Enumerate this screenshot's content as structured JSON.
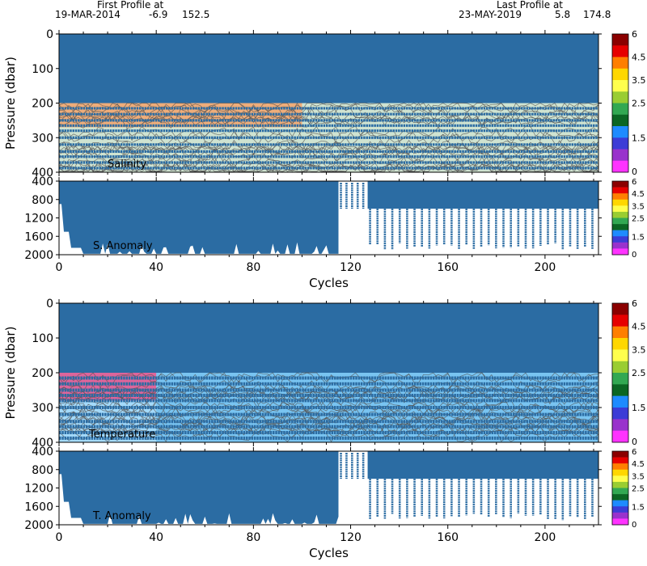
{
  "header": {
    "first_label": "First Profile at",
    "first_date": "19-MAR-2014",
    "first_lat": "-6.9",
    "first_lon": "152.5",
    "last_label": "Last Profile at",
    "last_date": "23-MAY-2019",
    "last_lat": "5.8",
    "last_lon": "174.8"
  },
  "colors": {
    "profile_blue": "#2b6ca3",
    "salinity_band": "#cfe3d1",
    "salinity_warm": "#f3a36b",
    "temperature_band": "#55b2ea",
    "temperature_light": "#a4dafa",
    "temperature_pink": "#e8508a",
    "contour": "#555555"
  },
  "colorbar": {
    "ticks": [
      "6",
      "4.5",
      "3.5",
      "2.5",
      "1.5",
      "0"
    ],
    "colors": [
      "#8b0000",
      "#e60000",
      "#ff7f00",
      "#ffd700",
      "#ffff4d",
      "#9acd32",
      "#32a852",
      "#0b6623",
      "#1e8bff",
      "#3c3cd6",
      "#9932cc",
      "#ff33ff"
    ]
  },
  "chart_data": [
    {
      "type": "heatmap",
      "name": "salinity",
      "panel_label": "Salinity",
      "ylabel": "Pressure (dbar)",
      "xlim": [
        0,
        222
      ],
      "ylim": [
        400,
        0
      ],
      "x_ticks": [
        "0",
        "40",
        "80",
        "120",
        "160",
        "200"
      ],
      "y_ticks": [
        "0",
        "100",
        "200",
        "300",
        "400"
      ],
      "pressure_bands": [
        215,
        232,
        250,
        265,
        280,
        300,
        320,
        340,
        355,
        372,
        388
      ],
      "warm_cycles_end": 100
    },
    {
      "type": "heatmap",
      "name": "salinity_anomaly",
      "panel_label": "S. Anomaly",
      "xlabel": "Cycles",
      "xlim": [
        0,
        222
      ],
      "ylim": [
        2000,
        400
      ],
      "x_ticks": [
        "0",
        "40",
        "80",
        "120",
        "160",
        "200"
      ],
      "y_ticks": [
        "400",
        "800",
        "1200",
        "1600",
        "2000"
      ]
    },
    {
      "type": "heatmap",
      "name": "temperature",
      "panel_label": "Temperature",
      "ylabel": "Pressure (dbar)",
      "xlim": [
        0,
        222
      ],
      "ylim": [
        400,
        0
      ],
      "x_ticks": [
        "0",
        "40",
        "80",
        "120",
        "160",
        "200"
      ],
      "y_ticks": [
        "0",
        "100",
        "200",
        "300",
        "400"
      ],
      "pressure_bands": [
        215,
        232,
        250,
        265,
        280,
        300,
        320,
        340,
        355,
        372,
        388
      ],
      "warm_cycles_end": 40
    },
    {
      "type": "heatmap",
      "name": "temperature_anomaly",
      "panel_label": "T. Anomaly",
      "xlabel": "Cycles",
      "xlim": [
        0,
        222
      ],
      "ylim": [
        2000,
        400
      ],
      "x_ticks": [
        "0",
        "40",
        "80",
        "120",
        "160",
        "200"
      ],
      "y_ticks": [
        "400",
        "800",
        "1200",
        "1600",
        "2000"
      ]
    }
  ]
}
